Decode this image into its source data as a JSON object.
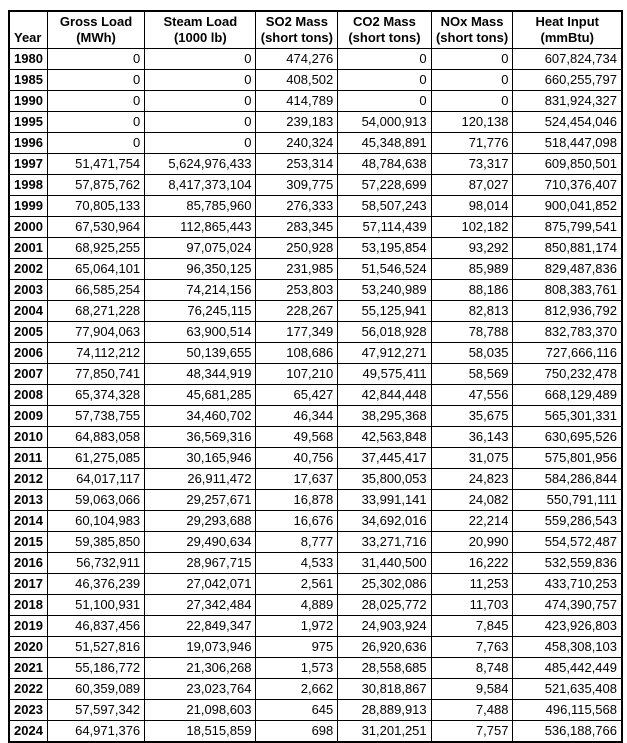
{
  "table": {
    "headers": [
      {
        "line1": "",
        "line2": "Year"
      },
      {
        "line1": "Gross Load",
        "line2": "(MWh)"
      },
      {
        "line1": "Steam Load",
        "line2": "(1000 lb)"
      },
      {
        "line1": "SO2 Mass",
        "line2": "(short tons)"
      },
      {
        "line1": "CO2 Mass",
        "line2": "(short tons)"
      },
      {
        "line1": "NOx Mass",
        "line2": "(short tons)"
      },
      {
        "line1": "Heat Input",
        "line2": "(mmBtu)"
      }
    ],
    "rows": [
      [
        "1980",
        "0",
        "0",
        "474,276",
        "0",
        "0",
        "607,824,734"
      ],
      [
        "1985",
        "0",
        "0",
        "408,502",
        "0",
        "0",
        "660,255,797"
      ],
      [
        "1990",
        "0",
        "0",
        "414,789",
        "0",
        "0",
        "831,924,327"
      ],
      [
        "1995",
        "0",
        "0",
        "239,183",
        "54,000,913",
        "120,138",
        "524,454,046"
      ],
      [
        "1996",
        "0",
        "0",
        "240,324",
        "45,348,891",
        "71,776",
        "518,447,098"
      ],
      [
        "1997",
        "51,471,754",
        "5,624,976,433",
        "253,314",
        "48,784,638",
        "73,317",
        "609,850,501"
      ],
      [
        "1998",
        "57,875,762",
        "8,417,373,104",
        "309,775",
        "57,228,699",
        "87,027",
        "710,376,407"
      ],
      [
        "1999",
        "70,805,133",
        "85,785,960",
        "276,333",
        "58,507,243",
        "98,014",
        "900,041,852"
      ],
      [
        "2000",
        "67,530,964",
        "112,865,443",
        "283,345",
        "57,114,439",
        "102,182",
        "875,799,541"
      ],
      [
        "2001",
        "68,925,255",
        "97,075,024",
        "250,928",
        "53,195,854",
        "93,292",
        "850,881,174"
      ],
      [
        "2002",
        "65,064,101",
        "96,350,125",
        "231,985",
        "51,546,524",
        "85,989",
        "829,487,836"
      ],
      [
        "2003",
        "66,585,254",
        "74,214,156",
        "253,803",
        "53,240,989",
        "88,186",
        "808,383,761"
      ],
      [
        "2004",
        "68,271,228",
        "76,245,115",
        "228,267",
        "55,125,941",
        "82,813",
        "812,936,792"
      ],
      [
        "2005",
        "77,904,063",
        "63,900,514",
        "177,349",
        "56,018,928",
        "78,788",
        "832,783,370"
      ],
      [
        "2006",
        "74,112,212",
        "50,139,655",
        "108,686",
        "47,912,271",
        "58,035",
        "727,666,116"
      ],
      [
        "2007",
        "77,850,741",
        "48,344,919",
        "107,210",
        "49,575,411",
        "58,569",
        "750,232,478"
      ],
      [
        "2008",
        "65,374,328",
        "45,681,285",
        "65,427",
        "42,844,448",
        "47,556",
        "668,129,489"
      ],
      [
        "2009",
        "57,738,755",
        "34,460,702",
        "46,344",
        "38,295,368",
        "35,675",
        "565,301,331"
      ],
      [
        "2010",
        "64,883,058",
        "36,569,316",
        "49,568",
        "42,563,848",
        "36,143",
        "630,695,526"
      ],
      [
        "2011",
        "61,275,085",
        "30,165,946",
        "40,756",
        "37,445,417",
        "31,075",
        "575,801,956"
      ],
      [
        "2012",
        "64,017,117",
        "26,911,472",
        "17,637",
        "35,800,053",
        "24,823",
        "584,286,844"
      ],
      [
        "2013",
        "59,063,066",
        "29,257,671",
        "16,878",
        "33,991,141",
        "24,082",
        "550,791,111"
      ],
      [
        "2014",
        "60,104,983",
        "29,293,688",
        "16,676",
        "34,692,016",
        "22,214",
        "559,286,543"
      ],
      [
        "2015",
        "59,385,850",
        "29,490,634",
        "8,777",
        "33,271,716",
        "20,990",
        "554,572,487"
      ],
      [
        "2016",
        "56,732,911",
        "28,967,715",
        "4,533",
        "31,440,500",
        "16,222",
        "532,559,836"
      ],
      [
        "2017",
        "46,376,239",
        "27,042,071",
        "2,561",
        "25,302,086",
        "11,253",
        "433,710,253"
      ],
      [
        "2018",
        "51,100,931",
        "27,342,484",
        "4,889",
        "28,025,772",
        "11,703",
        "474,390,757"
      ],
      [
        "2019",
        "46,837,456",
        "22,849,347",
        "1,972",
        "24,903,924",
        "7,845",
        "423,926,803"
      ],
      [
        "2020",
        "51,527,816",
        "19,073,946",
        "975",
        "26,920,636",
        "7,763",
        "458,308,103"
      ],
      [
        "2021",
        "55,186,772",
        "21,306,268",
        "1,573",
        "28,558,685",
        "8,748",
        "485,442,449"
      ],
      [
        "2022",
        "60,359,089",
        "23,023,764",
        "2,662",
        "30,818,867",
        "9,584",
        "521,635,408"
      ],
      [
        "2023",
        "57,597,342",
        "21,098,603",
        "645",
        "28,889,913",
        "7,488",
        "496,115,568"
      ],
      [
        "2024",
        "64,971,376",
        "18,515,859",
        "698",
        "31,201,251",
        "7,757",
        "536,188,766"
      ]
    ]
  },
  "chart_data": {
    "type": "table",
    "title": "",
    "categories": [
      1980,
      1985,
      1990,
      1995,
      1996,
      1997,
      1998,
      1999,
      2000,
      2001,
      2002,
      2003,
      2004,
      2005,
      2006,
      2007,
      2008,
      2009,
      2010,
      2011,
      2012,
      2013,
      2014,
      2015,
      2016,
      2017,
      2018,
      2019,
      2020,
      2021,
      2022,
      2023,
      2024
    ],
    "series": [
      {
        "name": "Gross Load (MWh)",
        "values": [
          0,
          0,
          0,
          0,
          0,
          51471754,
          57875762,
          70805133,
          67530964,
          68925255,
          65064101,
          66585254,
          68271228,
          77904063,
          74112212,
          77850741,
          65374328,
          57738755,
          64883058,
          61275085,
          64017117,
          59063066,
          60104983,
          59385850,
          56732911,
          46376239,
          51100931,
          46837456,
          51527816,
          55186772,
          60359089,
          57597342,
          64971376
        ]
      },
      {
        "name": "Steam Load (1000 lb)",
        "values": [
          0,
          0,
          0,
          0,
          0,
          5624976433,
          8417373104,
          85785960,
          112865443,
          97075024,
          96350125,
          74214156,
          76245115,
          63900514,
          50139655,
          48344919,
          45681285,
          34460702,
          36569316,
          30165946,
          26911472,
          29257671,
          29293688,
          29490634,
          28967715,
          27042071,
          27342484,
          22849347,
          19073946,
          21306268,
          23023764,
          21098603,
          18515859
        ]
      },
      {
        "name": "SO2 Mass (short tons)",
        "values": [
          474276,
          408502,
          414789,
          239183,
          240324,
          253314,
          309775,
          276333,
          283345,
          250928,
          231985,
          253803,
          228267,
          177349,
          108686,
          107210,
          65427,
          46344,
          49568,
          40756,
          17637,
          16878,
          16676,
          8777,
          4533,
          2561,
          4889,
          1972,
          975,
          1573,
          2662,
          645,
          698
        ]
      },
      {
        "name": "CO2 Mass (short tons)",
        "values": [
          0,
          0,
          0,
          54000913,
          45348891,
          48784638,
          57228699,
          58507243,
          57114439,
          53195854,
          51546524,
          53240989,
          55125941,
          56018928,
          47912271,
          49575411,
          42844448,
          38295368,
          42563848,
          37445417,
          35800053,
          33991141,
          34692016,
          33271716,
          31440500,
          25302086,
          28025772,
          24903924,
          26920636,
          28558685,
          30818867,
          28889913,
          31201251
        ]
      },
      {
        "name": "NOx Mass (short tons)",
        "values": [
          0,
          0,
          0,
          120138,
          71776,
          73317,
          87027,
          98014,
          102182,
          93292,
          85989,
          88186,
          82813,
          78788,
          58035,
          58569,
          47556,
          35675,
          36143,
          31075,
          24823,
          24082,
          22214,
          20990,
          16222,
          11253,
          11703,
          7845,
          7763,
          8748,
          9584,
          7488,
          7757
        ]
      },
      {
        "name": "Heat Input (mmBtu)",
        "values": [
          607824734,
          660255797,
          831924327,
          524454046,
          518447098,
          609850501,
          710376407,
          900041852,
          875799541,
          850881174,
          829487836,
          808383761,
          812936792,
          832783370,
          727666116,
          750232478,
          668129489,
          565301331,
          630695526,
          575801956,
          584286844,
          550791111,
          559286543,
          554572487,
          532559836,
          433710253,
          474390757,
          423926803,
          458308103,
          485442449,
          521635408,
          496115568,
          536188766
        ]
      }
    ],
    "xlabel": "Year",
    "ylabel": ""
  }
}
